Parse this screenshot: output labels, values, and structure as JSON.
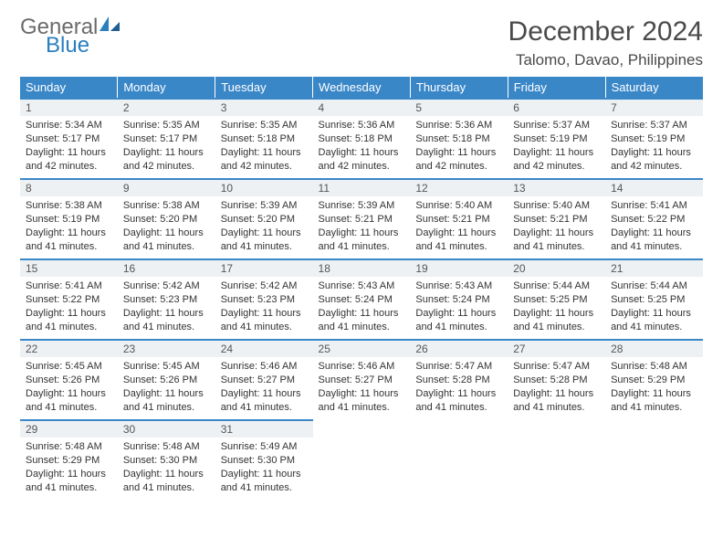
{
  "logo": {
    "word1": "General",
    "word2": "Blue"
  },
  "colors": {
    "header_bg": "#3a87c8",
    "header_text": "#ffffff",
    "daynum_bg": "#eef1f3",
    "border": "#3a87c8",
    "logo_gray": "#6b6b6b",
    "logo_blue": "#2a7fbf",
    "body_text": "#333333",
    "title_text": "#4a4a4a",
    "page_bg": "#ffffff"
  },
  "title": "December 2024",
  "location": "Talomo, Davao, Philippines",
  "weekdays": [
    "Sunday",
    "Monday",
    "Tuesday",
    "Wednesday",
    "Thursday",
    "Friday",
    "Saturday"
  ],
  "fonts": {
    "title_size_pt": 30,
    "location_size_pt": 17,
    "weekday_size_pt": 13,
    "daynum_size_pt": 12,
    "body_size_pt": 11
  },
  "days": [
    {
      "n": 1,
      "sunrise": "5:34 AM",
      "sunset": "5:17 PM",
      "daylight": "11 hours and 42 minutes."
    },
    {
      "n": 2,
      "sunrise": "5:35 AM",
      "sunset": "5:17 PM",
      "daylight": "11 hours and 42 minutes."
    },
    {
      "n": 3,
      "sunrise": "5:35 AM",
      "sunset": "5:18 PM",
      "daylight": "11 hours and 42 minutes."
    },
    {
      "n": 4,
      "sunrise": "5:36 AM",
      "sunset": "5:18 PM",
      "daylight": "11 hours and 42 minutes."
    },
    {
      "n": 5,
      "sunrise": "5:36 AM",
      "sunset": "5:18 PM",
      "daylight": "11 hours and 42 minutes."
    },
    {
      "n": 6,
      "sunrise": "5:37 AM",
      "sunset": "5:19 PM",
      "daylight": "11 hours and 42 minutes."
    },
    {
      "n": 7,
      "sunrise": "5:37 AM",
      "sunset": "5:19 PM",
      "daylight": "11 hours and 42 minutes."
    },
    {
      "n": 8,
      "sunrise": "5:38 AM",
      "sunset": "5:19 PM",
      "daylight": "11 hours and 41 minutes."
    },
    {
      "n": 9,
      "sunrise": "5:38 AM",
      "sunset": "5:20 PM",
      "daylight": "11 hours and 41 minutes."
    },
    {
      "n": 10,
      "sunrise": "5:39 AM",
      "sunset": "5:20 PM",
      "daylight": "11 hours and 41 minutes."
    },
    {
      "n": 11,
      "sunrise": "5:39 AM",
      "sunset": "5:21 PM",
      "daylight": "11 hours and 41 minutes."
    },
    {
      "n": 12,
      "sunrise": "5:40 AM",
      "sunset": "5:21 PM",
      "daylight": "11 hours and 41 minutes."
    },
    {
      "n": 13,
      "sunrise": "5:40 AM",
      "sunset": "5:21 PM",
      "daylight": "11 hours and 41 minutes."
    },
    {
      "n": 14,
      "sunrise": "5:41 AM",
      "sunset": "5:22 PM",
      "daylight": "11 hours and 41 minutes."
    },
    {
      "n": 15,
      "sunrise": "5:41 AM",
      "sunset": "5:22 PM",
      "daylight": "11 hours and 41 minutes."
    },
    {
      "n": 16,
      "sunrise": "5:42 AM",
      "sunset": "5:23 PM",
      "daylight": "11 hours and 41 minutes."
    },
    {
      "n": 17,
      "sunrise": "5:42 AM",
      "sunset": "5:23 PM",
      "daylight": "11 hours and 41 minutes."
    },
    {
      "n": 18,
      "sunrise": "5:43 AM",
      "sunset": "5:24 PM",
      "daylight": "11 hours and 41 minutes."
    },
    {
      "n": 19,
      "sunrise": "5:43 AM",
      "sunset": "5:24 PM",
      "daylight": "11 hours and 41 minutes."
    },
    {
      "n": 20,
      "sunrise": "5:44 AM",
      "sunset": "5:25 PM",
      "daylight": "11 hours and 41 minutes."
    },
    {
      "n": 21,
      "sunrise": "5:44 AM",
      "sunset": "5:25 PM",
      "daylight": "11 hours and 41 minutes."
    },
    {
      "n": 22,
      "sunrise": "5:45 AM",
      "sunset": "5:26 PM",
      "daylight": "11 hours and 41 minutes."
    },
    {
      "n": 23,
      "sunrise": "5:45 AM",
      "sunset": "5:26 PM",
      "daylight": "11 hours and 41 minutes."
    },
    {
      "n": 24,
      "sunrise": "5:46 AM",
      "sunset": "5:27 PM",
      "daylight": "11 hours and 41 minutes."
    },
    {
      "n": 25,
      "sunrise": "5:46 AM",
      "sunset": "5:27 PM",
      "daylight": "11 hours and 41 minutes."
    },
    {
      "n": 26,
      "sunrise": "5:47 AM",
      "sunset": "5:28 PM",
      "daylight": "11 hours and 41 minutes."
    },
    {
      "n": 27,
      "sunrise": "5:47 AM",
      "sunset": "5:28 PM",
      "daylight": "11 hours and 41 minutes."
    },
    {
      "n": 28,
      "sunrise": "5:48 AM",
      "sunset": "5:29 PM",
      "daylight": "11 hours and 41 minutes."
    },
    {
      "n": 29,
      "sunrise": "5:48 AM",
      "sunset": "5:29 PM",
      "daylight": "11 hours and 41 minutes."
    },
    {
      "n": 30,
      "sunrise": "5:48 AM",
      "sunset": "5:30 PM",
      "daylight": "11 hours and 41 minutes."
    },
    {
      "n": 31,
      "sunrise": "5:49 AM",
      "sunset": "5:30 PM",
      "daylight": "11 hours and 41 minutes."
    }
  ],
  "labels": {
    "sunrise_prefix": "Sunrise: ",
    "sunset_prefix": "Sunset: ",
    "daylight_prefix": "Daylight: "
  },
  "grid": {
    "cols": 7,
    "rows": 5,
    "start_weekday_index": 0
  }
}
